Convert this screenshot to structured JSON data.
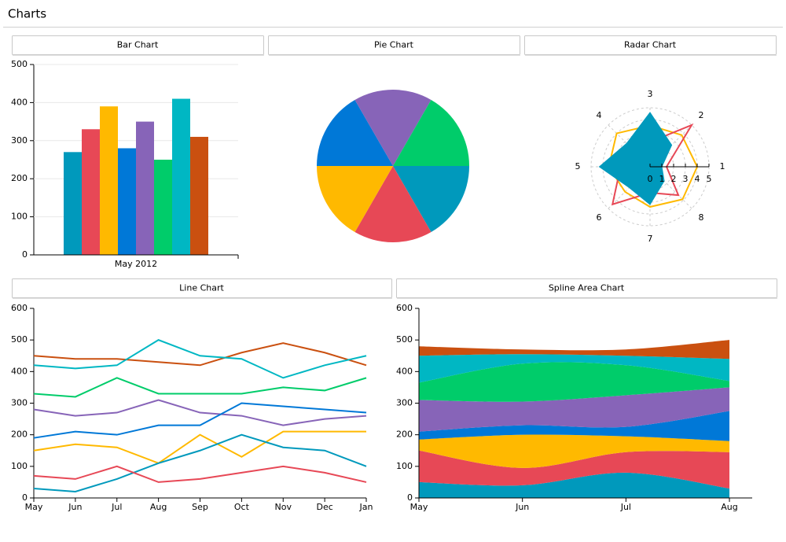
{
  "page_title": "Charts",
  "chart_data": [
    {
      "type": "bar",
      "title": "Bar Chart",
      "categories": [
        "May 2012"
      ],
      "series": [
        {
          "color": "#0099bc",
          "values": [
            270
          ]
        },
        {
          "color": "#e74856",
          "values": [
            330
          ]
        },
        {
          "color": "#ffb900",
          "values": [
            390
          ]
        },
        {
          "color": "#0078d7",
          "values": [
            280
          ]
        },
        {
          "color": "#8764b8",
          "values": [
            350
          ]
        },
        {
          "color": "#00cc6a",
          "values": [
            250
          ]
        },
        {
          "color": "#00b7c3",
          "values": [
            410
          ]
        },
        {
          "color": "#ca5010",
          "values": [
            310
          ]
        }
      ],
      "ylim": [
        0,
        500
      ],
      "yticks": [
        0,
        100,
        200,
        300,
        400,
        500
      ],
      "grid": true
    },
    {
      "type": "pie",
      "title": "Pie Chart",
      "values": [
        1,
        1,
        1,
        1,
        1,
        1
      ],
      "colors": [
        "#0099bc",
        "#e74856",
        "#ffb900",
        "#0078d7",
        "#8764b8",
        "#00cc6a"
      ]
    },
    {
      "type": "radar",
      "title": "Radar Chart",
      "categories": [
        "1",
        "2",
        "3",
        "4",
        "5",
        "6",
        "7",
        "8"
      ],
      "rlim": [
        0,
        5
      ],
      "rticks": [
        0,
        1,
        2,
        3,
        4,
        5
      ],
      "series": [
        {
          "color": "#ffb900",
          "fill": false,
          "values": [
            4,
            3.8,
            3.5,
            4,
            3.5,
            3,
            3.4,
            3.9
          ]
        },
        {
          "color": "#e74856",
          "fill": false,
          "values": [
            1.4,
            5,
            2.1,
            2,
            2.5,
            4.5,
            2.2,
            3.4
          ]
        },
        {
          "color": "#0099bc",
          "fill": true,
          "values": [
            1,
            2.6,
            4.6,
            2.8,
            4.3,
            2.5,
            3.2,
            1.7
          ]
        }
      ]
    },
    {
      "type": "line",
      "title": "Line Chart",
      "categories": [
        "May",
        "Jun",
        "Jul",
        "Aug",
        "Sep",
        "Oct",
        "Nov",
        "Dec",
        "Jan"
      ],
      "series": [
        {
          "color": "#ca5010",
          "values": [
            450,
            440,
            440,
            430,
            420,
            460,
            490,
            460,
            420
          ]
        },
        {
          "color": "#00b7c3",
          "values": [
            420,
            410,
            420,
            500,
            450,
            440,
            380,
            420,
            450
          ]
        },
        {
          "color": "#00cc6a",
          "values": [
            330,
            320,
            380,
            330,
            330,
            330,
            350,
            340,
            380
          ]
        },
        {
          "color": "#8764b8",
          "values": [
            280,
            260,
            270,
            310,
            270,
            260,
            230,
            250,
            260
          ]
        },
        {
          "color": "#0078d7",
          "values": [
            190,
            210,
            200,
            230,
            230,
            300,
            290,
            280,
            270
          ]
        },
        {
          "color": "#ffb900",
          "values": [
            150,
            170,
            160,
            110,
            200,
            130,
            210,
            210,
            210
          ]
        },
        {
          "color": "#0099bc",
          "values": [
            30,
            20,
            60,
            110,
            150,
            200,
            160,
            150,
            100
          ]
        },
        {
          "color": "#e74856",
          "values": [
            70,
            60,
            100,
            50,
            60,
            80,
            100,
            80,
            50
          ]
        }
      ],
      "ylim": [
        0,
        600
      ],
      "yticks": [
        0,
        100,
        200,
        300,
        400,
        500,
        600
      ],
      "grid": false
    },
    {
      "type": "spline_area",
      "title": "Spline Area Chart",
      "stacked": true,
      "categories": [
        "May",
        "Jun",
        "Jul",
        "Aug"
      ],
      "series": [
        {
          "color": "#0099bc",
          "values": [
            50,
            40,
            80,
            30
          ]
        },
        {
          "color": "#e74856",
          "values": [
            100,
            55,
            65,
            115
          ]
        },
        {
          "color": "#ffb900",
          "values": [
            35,
            105,
            50,
            35
          ]
        },
        {
          "color": "#0078d7",
          "values": [
            25,
            30,
            30,
            95
          ]
        },
        {
          "color": "#8764b8",
          "values": [
            100,
            75,
            100,
            75
          ]
        },
        {
          "color": "#00cc6a",
          "values": [
            55,
            120,
            95,
            20
          ]
        },
        {
          "color": "#00b7c3",
          "values": [
            85,
            30,
            30,
            70
          ]
        },
        {
          "color": "#ca5010",
          "values": [
            30,
            15,
            20,
            60
          ]
        }
      ],
      "ylim": [
        0,
        600
      ],
      "yticks": [
        0,
        100,
        200,
        300,
        400,
        500,
        600
      ],
      "grid": false
    }
  ]
}
